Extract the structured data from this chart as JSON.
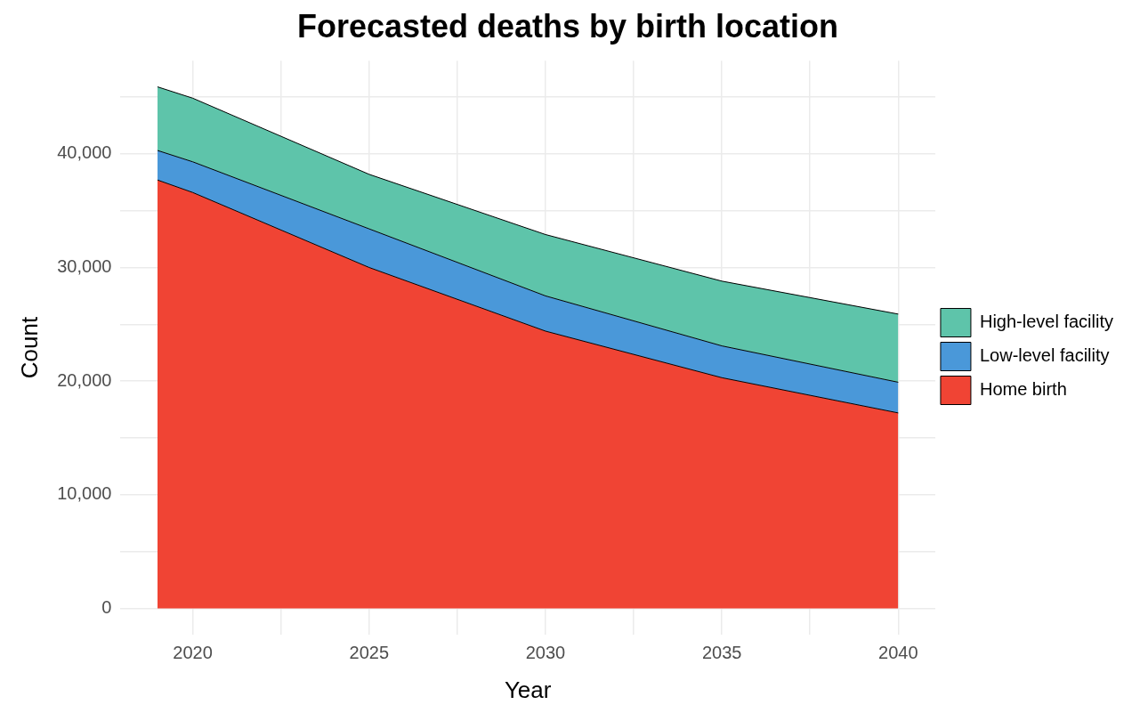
{
  "chart_data": {
    "type": "area",
    "title": "Forecasted deaths by birth location",
    "xlabel": "Year",
    "ylabel": "Count",
    "x": [
      2019,
      2020,
      2025,
      2030,
      2035,
      2040
    ],
    "series": [
      {
        "name": "Home birth",
        "color": "#f04434",
        "values": [
          37700,
          36600,
          30000,
          24400,
          20300,
          17200
        ]
      },
      {
        "name": "Low-level facility",
        "color": "#4a98d9",
        "values": [
          2600,
          2700,
          3400,
          3100,
          2800,
          2700
        ]
      },
      {
        "name": "High-level facility",
        "color": "#5ec4aa",
        "values": [
          5600,
          5600,
          4800,
          5400,
          5700,
          6000
        ]
      }
    ],
    "stacked": true,
    "xlim": [
      2017.95,
      2041.05
    ],
    "xticks": [
      2020,
      {
        "value": 2022.5,
        "label": null
      },
      2025,
      {
        "value": 2027.5,
        "label": null
      },
      2030,
      {
        "value": 2032.5,
        "label": null
      },
      2035,
      {
        "value": 2037.5,
        "label": null
      },
      2040
    ],
    "ylim": [
      -2300,
      48200
    ],
    "yticks": [
      0,
      {
        "value": 5000,
        "label": null
      },
      {
        "value": 10000,
        "label": "10,000"
      },
      {
        "value": 15000,
        "label": null
      },
      {
        "value": 20000,
        "label": "20,000"
      },
      {
        "value": 25000,
        "label": null
      },
      {
        "value": 30000,
        "label": "30,000"
      },
      {
        "value": 35000,
        "label": null
      },
      {
        "value": 40000,
        "label": "40,000"
      },
      {
        "value": 45000,
        "label": null
      }
    ],
    "grid": true,
    "legend": "right"
  }
}
